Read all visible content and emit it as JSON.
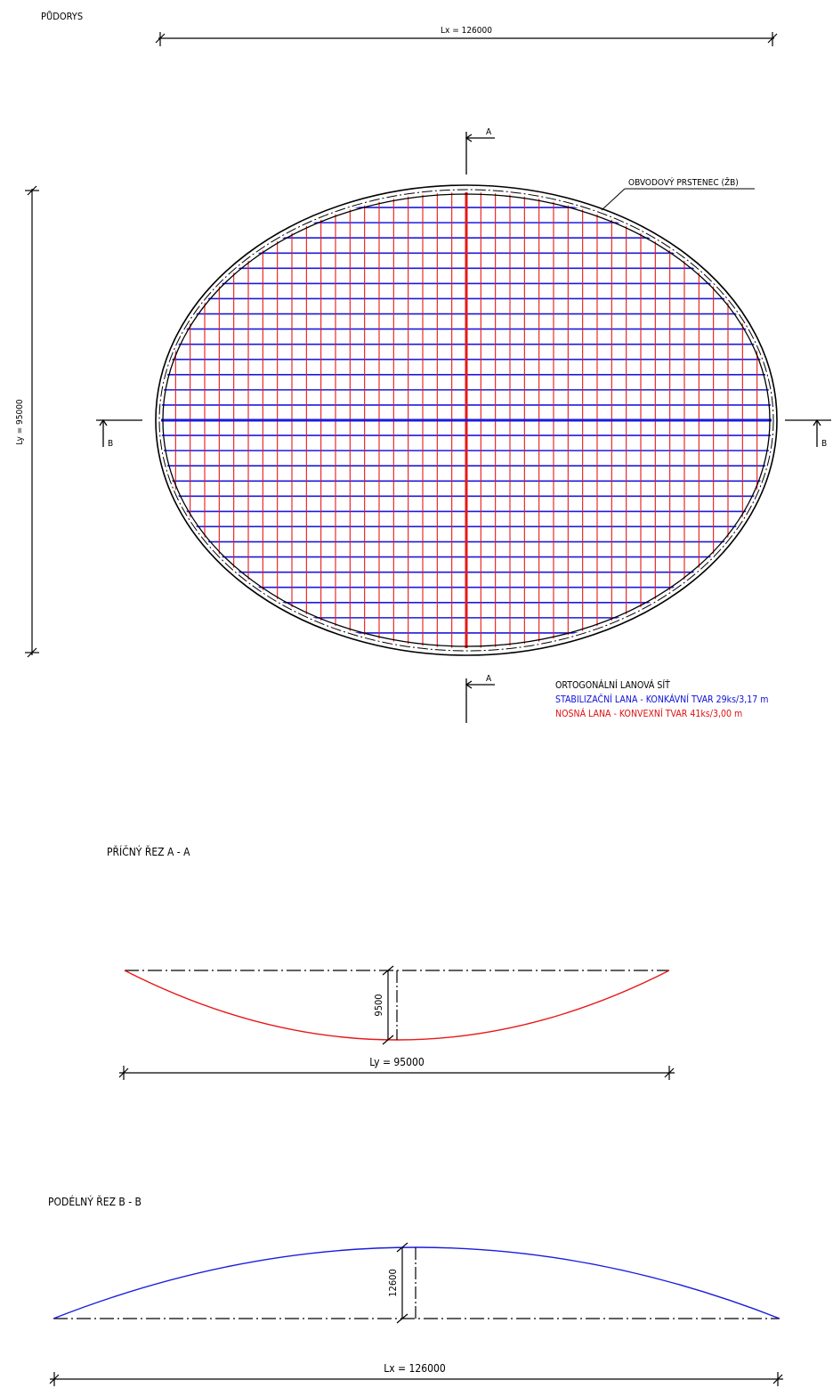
{
  "plan": {
    "title": "PŮDORYS",
    "dim_lx": "Lx = 126000",
    "dim_ly": "Ly = 95000",
    "ring_label": "OBVODOVÝ PRSTENEC (ŽB)",
    "section_a_mark": "A",
    "section_b_mark": "B"
  },
  "legend": {
    "title": "ORTOGONÁLNÍ LANOVÁ SÍŤ",
    "blue_line": "STABILIZAČNÍ LANA - KONKÁVNÍ TVAR 29ks/3,17 m",
    "red_line": "NOSNÁ LANA - KONVEXNÍ TVAR 41ks/3,00 m"
  },
  "section_aa": {
    "title": "PŘÍČNÝ ŘEZ A - A",
    "dim_span": "Ly = 95000",
    "dim_sag": "9500"
  },
  "section_bb": {
    "title": "PODÉLNÝ ŘEZ B - B",
    "dim_span": "Lx = 126000",
    "dim_rise": "12600"
  },
  "colors": {
    "stabilizing_cables": "#1a1ae0",
    "bearing_cables": "#e81818",
    "linework": "#000000"
  },
  "cable_net": {
    "stabilizing_count": 29,
    "stabilizing_spacing_m": 3.17,
    "bearing_count": 41,
    "bearing_spacing_m": 3.0
  }
}
